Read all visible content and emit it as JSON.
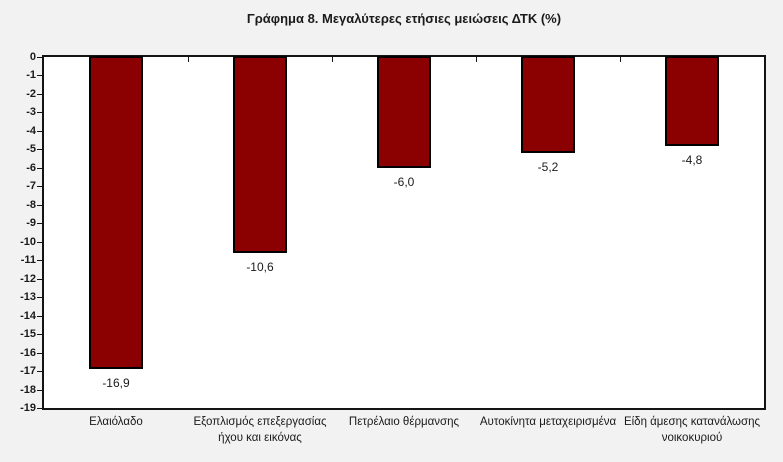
{
  "title": "Γράφημα 8. Μεγαλύτερες ετήσιες μειώσεις ΔΤΚ (%)",
  "chart_data": {
    "type": "bar",
    "orientation": "vertical",
    "title": "Γράφημα 8. Μεγαλύτερες ετήσιες μειώσεις ΔΤΚ (%)",
    "categories": [
      "Ελαιόλαδο",
      "Εξοπλισμός επεξεργασίας ήχου και εικόνας",
      "Πετρέλαιο θέρμανσης",
      "Αυτοκίνητα μεταχειρισμένα",
      "Είδη άμεσης κατανάλωσης νοικοκυριού"
    ],
    "values": [
      -16.9,
      -10.6,
      -6.0,
      -5.2,
      -4.8
    ],
    "data_labels": [
      "-16,9",
      "-10,6",
      "-6,0",
      "-5,2",
      "-4,8"
    ],
    "xlabel": "",
    "ylabel": "",
    "ylim": [
      -19,
      0
    ],
    "y_tick_step": 1,
    "y_tick_labels": [
      "0",
      "-1",
      "-2",
      "-3",
      "-4",
      "-5",
      "-6",
      "-7",
      "-8",
      "-9",
      "-10",
      "-11",
      "-12",
      "-13",
      "-14",
      "-15",
      "-16",
      "-17",
      "-18",
      "-19"
    ],
    "grid": false,
    "legend": "none",
    "colors": {
      "bar_fill": "#8B0000",
      "bar_border": "#000000",
      "canvas_background": "#F2F2F2",
      "plot_background": "#FFFFFF",
      "axis_frame": "#141414",
      "text": "#1A1A1A"
    }
  }
}
